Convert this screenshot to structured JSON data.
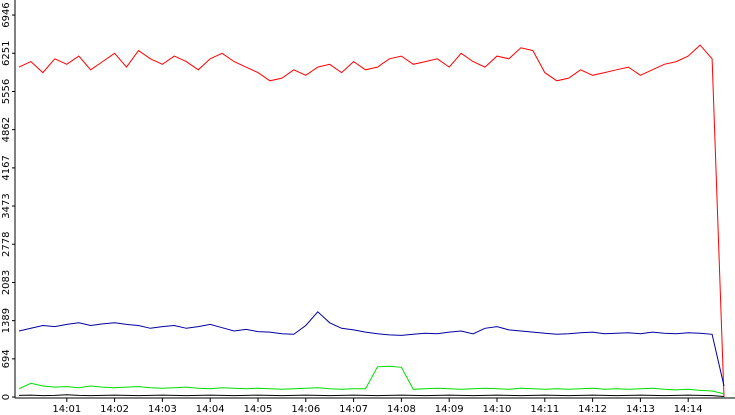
{
  "chart_data": {
    "type": "line",
    "categories": [
      null,
      null,
      null,
      null,
      "14:01",
      null,
      null,
      null,
      "14:02",
      null,
      null,
      null,
      "14:03",
      null,
      null,
      null,
      "14:04",
      null,
      null,
      null,
      "14:05",
      null,
      null,
      null,
      "14:06",
      null,
      null,
      null,
      "14:07",
      null,
      null,
      null,
      "14:08",
      null,
      null,
      null,
      "14:09",
      null,
      null,
      null,
      "14:10",
      null,
      null,
      null,
      "14:11",
      null,
      null,
      null,
      "14:12",
      null,
      null,
      null,
      "14:13",
      null,
      null,
      null,
      "14:14",
      null,
      null,
      null
    ],
    "series": [
      {
        "color": "#ff0000",
        "values": [
          6000,
          6100,
          5900,
          6150,
          6050,
          6200,
          5950,
          6100,
          6250,
          6000,
          6300,
          6150,
          6050,
          6200,
          6100,
          5950,
          6150,
          6250,
          6100,
          6000,
          5900,
          5750,
          5800,
          5950,
          5850,
          6000,
          6050,
          5900,
          6100,
          5950,
          6000,
          6150,
          6200,
          6050,
          6100,
          6150,
          6000,
          6250,
          6100,
          6000,
          6200,
          6150,
          6350,
          6300,
          5900,
          5750,
          5800,
          5950,
          5850,
          5900,
          5950,
          6000,
          5850,
          5950,
          6050,
          6100,
          6200,
          6400,
          6150,
          0
        ]
      },
      {
        "color": "#0000a0",
        "values": [
          1200,
          1250,
          1300,
          1280,
          1320,
          1350,
          1300,
          1330,
          1350,
          1320,
          1300,
          1250,
          1280,
          1300,
          1250,
          1280,
          1320,
          1260,
          1200,
          1230,
          1190,
          1180,
          1150,
          1140,
          1300,
          1550,
          1350,
          1250,
          1220,
          1180,
          1150,
          1130,
          1120,
          1140,
          1160,
          1150,
          1180,
          1200,
          1150,
          1250,
          1280,
          1220,
          1200,
          1180,
          1160,
          1140,
          1150,
          1170,
          1180,
          1150,
          1160,
          1170,
          1150,
          1180,
          1160,
          1150,
          1170,
          1160,
          1140,
          200
        ]
      },
      {
        "color": "#00dd00",
        "values": [
          150,
          250,
          200,
          180,
          190,
          170,
          200,
          180,
          170,
          180,
          190,
          170,
          160,
          170,
          180,
          160,
          150,
          170,
          160,
          150,
          160,
          150,
          140,
          150,
          160,
          170,
          150,
          140,
          150,
          150,
          550,
          560,
          540,
          140,
          150,
          160,
          150,
          140,
          150,
          160,
          150,
          140,
          160,
          150,
          140,
          150,
          140,
          150,
          160,
          140,
          150,
          140,
          150,
          160,
          140,
          130,
          140,
          120,
          110,
          60
        ]
      },
      {
        "color": "#000000",
        "values": [
          30,
          35,
          25,
          30,
          40,
          30,
          25,
          30,
          35,
          30,
          25,
          30,
          35,
          30,
          25,
          30,
          35,
          30,
          25,
          30,
          35,
          30,
          25,
          30,
          35,
          30,
          25,
          30,
          35,
          30,
          25,
          30,
          35,
          30,
          25,
          30,
          35,
          30,
          25,
          30,
          35,
          30,
          25,
          30,
          35,
          30,
          25,
          30,
          35,
          30,
          25,
          30,
          35,
          30,
          25,
          30,
          35,
          30,
          25,
          10
        ]
      }
    ],
    "ylim": [
      0,
      7220
    ],
    "yticks": [
      0,
      694,
      1389,
      2083,
      2778,
      3473,
      4167,
      4862,
      5556,
      6251,
      6946
    ]
  }
}
